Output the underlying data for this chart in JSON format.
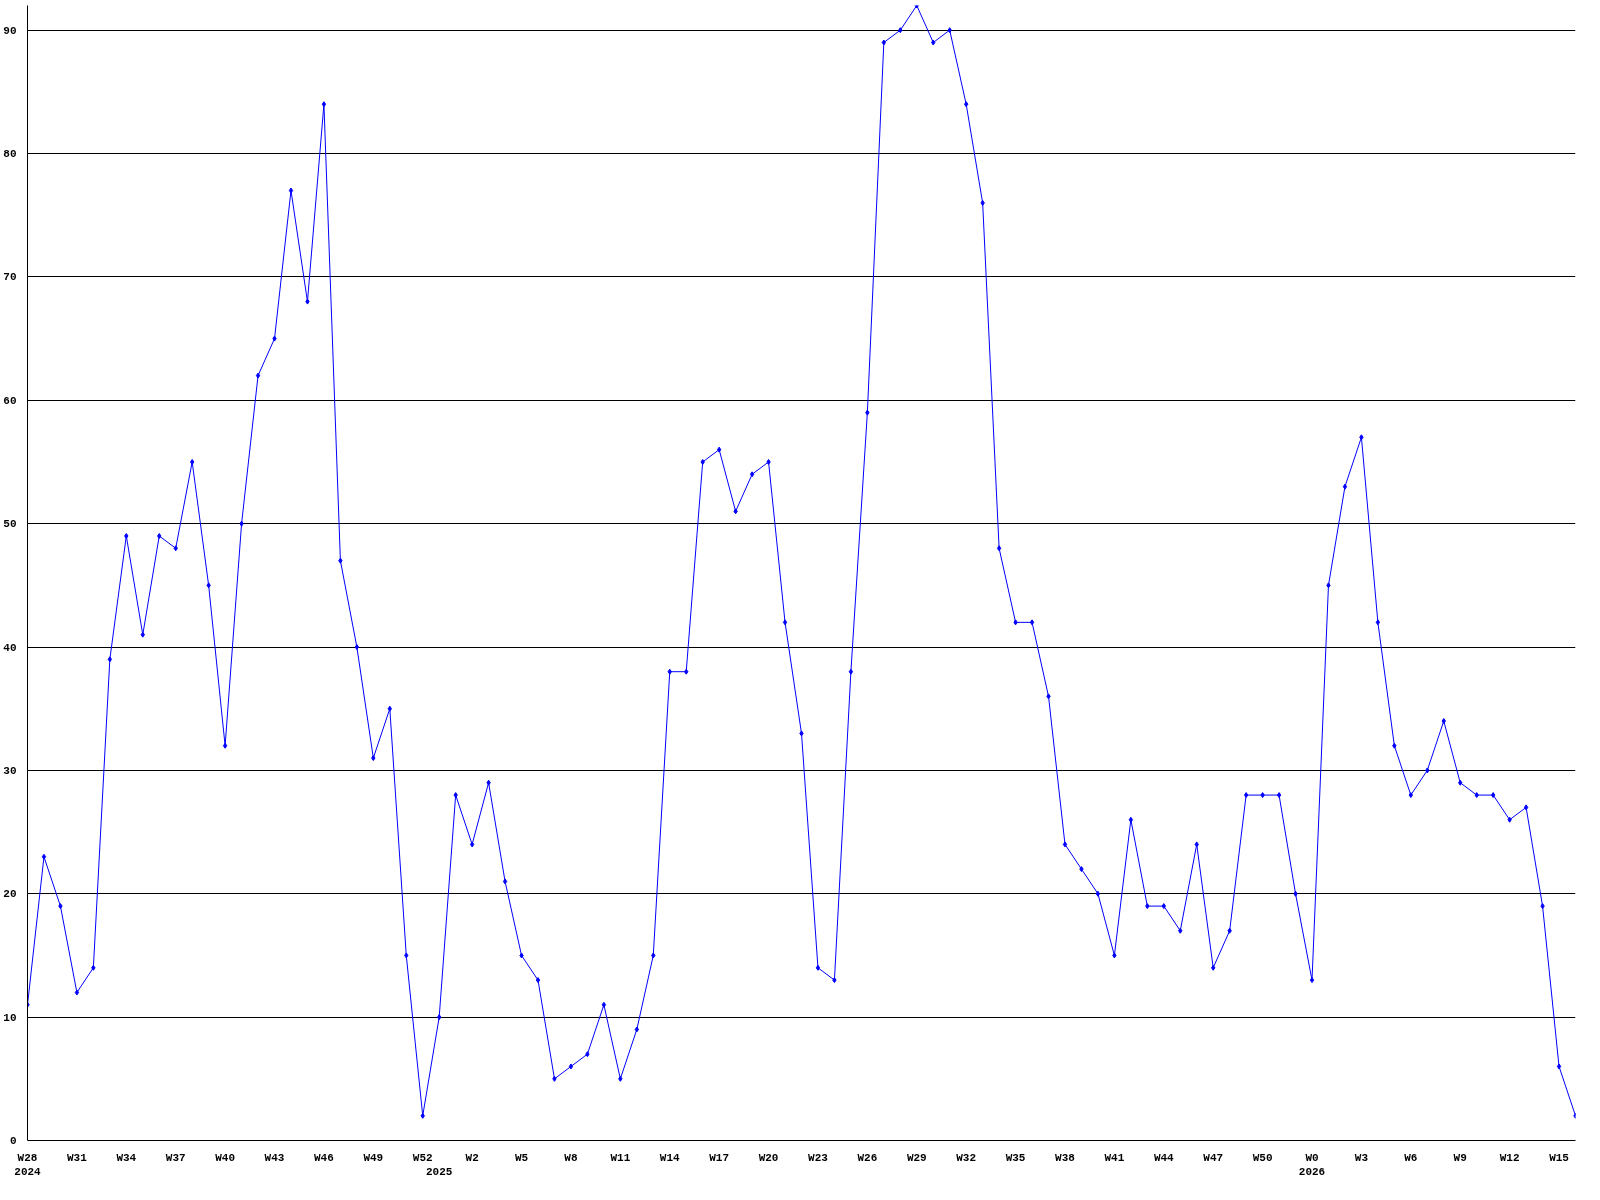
{
  "chart_data": {
    "type": "line",
    "categories": [
      "W28\n2024",
      null,
      null,
      "W31",
      null,
      null,
      "W34",
      null,
      null,
      "W37",
      null,
      null,
      "W40",
      null,
      null,
      "W43",
      null,
      null,
      "W46",
      null,
      null,
      "W49",
      null,
      null,
      "W52",
      "\n2025",
      null,
      "W2",
      null,
      null,
      "W5",
      null,
      null,
      "W8",
      null,
      null,
      "W11",
      null,
      null,
      "W14",
      null,
      null,
      "W17",
      null,
      null,
      "W20",
      null,
      null,
      "W23",
      null,
      null,
      "W26",
      null,
      null,
      "W29",
      null,
      null,
      "W32",
      null,
      null,
      "W35",
      null,
      null,
      "W38",
      null,
      null,
      "W41",
      null,
      null,
      "W44",
      null,
      null,
      "W47",
      null,
      null,
      "W50",
      null,
      null,
      "W0\n2026",
      null,
      null,
      "W3",
      null,
      null,
      "W6",
      null,
      null,
      "W9",
      null,
      null,
      "W12",
      null,
      null,
      "W15",
      null
    ],
    "series": [
      {
        "color": "#0000ff",
        "values": [
          11,
          23,
          19,
          12,
          14,
          39,
          49,
          41,
          49,
          48,
          55,
          45,
          32,
          50,
          62,
          65,
          77,
          68,
          84,
          47,
          40,
          31,
          35,
          15,
          2,
          10,
          28,
          24,
          29,
          21,
          15,
          13,
          5,
          6,
          7,
          11,
          5,
          9,
          15,
          38,
          38,
          55,
          56,
          51,
          54,
          55,
          42,
          33,
          14,
          13,
          38,
          59,
          89,
          90,
          92,
          89,
          90,
          84,
          76,
          48,
          42,
          42,
          36,
          24,
          22,
          20,
          15,
          26,
          19,
          19,
          17,
          24,
          14,
          17,
          28,
          28,
          28,
          20,
          13,
          45,
          53,
          57,
          42,
          32,
          28,
          30,
          34,
          29,
          28,
          28,
          26,
          27,
          19,
          6,
          2
        ]
      }
    ],
    "ylim": [
      0,
      92
    ],
    "yticks": [
      0,
      10,
      20,
      30,
      40,
      50,
      60,
      70,
      80,
      90
    ],
    "grid": "y",
    "marker": "diamond",
    "line_style": "solid"
  }
}
